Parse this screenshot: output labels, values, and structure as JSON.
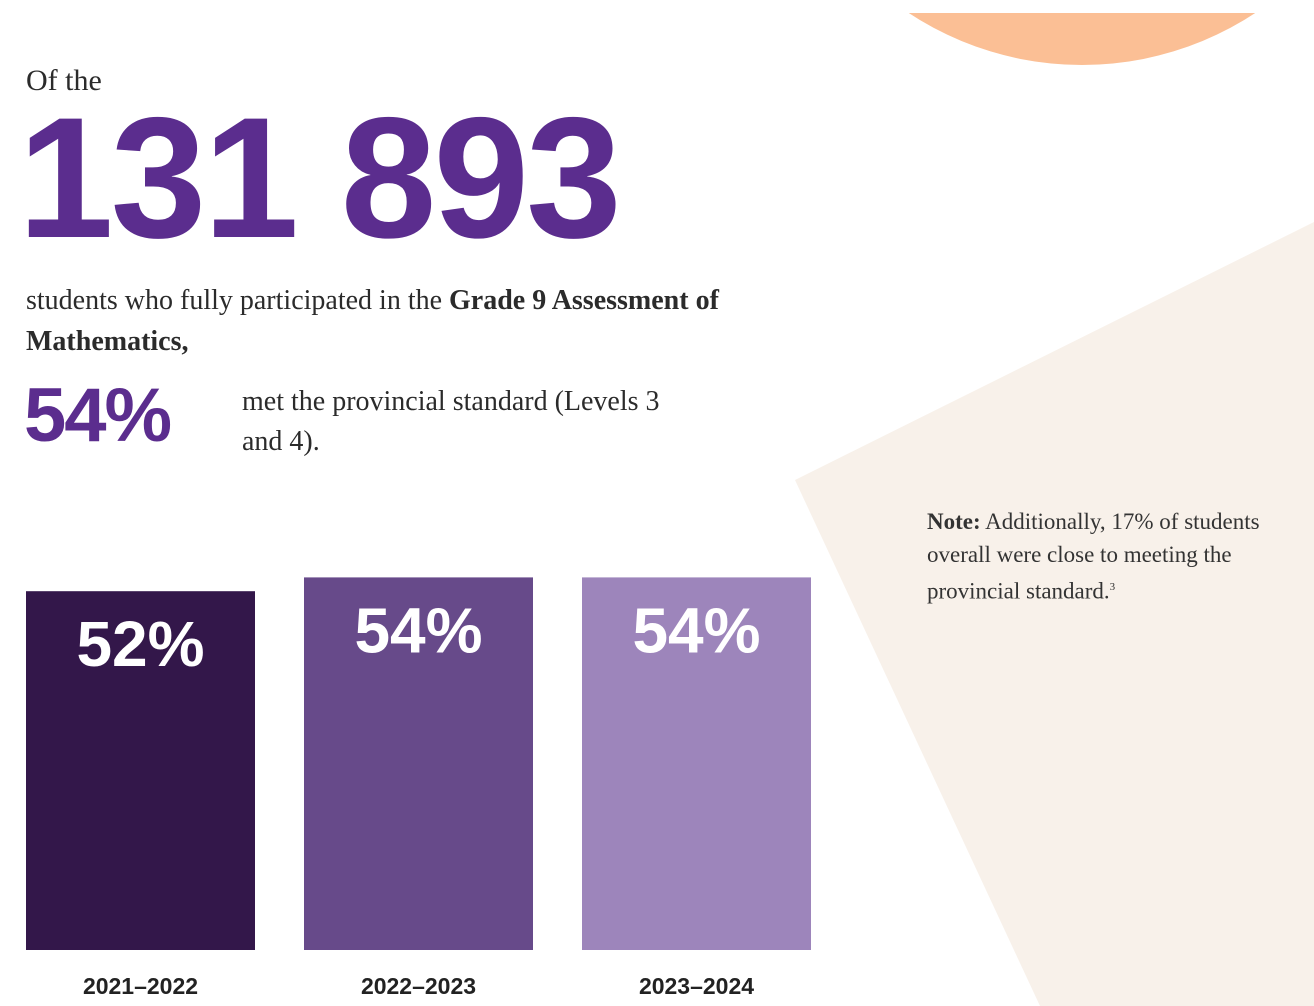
{
  "intro": {
    "lead": "Of the",
    "count": "131 893",
    "text_plain": "students who fully participated in the ",
    "text_bold": "Grade 9 Assessment of Mathematics,",
    "percent": "54%",
    "percent_text": "met the provincial standard (Levels 3 and 4)."
  },
  "note": {
    "label": "Note:",
    "text": " Additionally, 17% of students overall were close to meeting the provincial standard.",
    "footnote": "3"
  },
  "chart_data": {
    "type": "bar",
    "categories": [
      "2021–2022",
      "2022–2023",
      "2023–2024"
    ],
    "values": [
      52,
      54,
      54
    ],
    "value_labels": [
      "52%",
      "54%",
      "54%"
    ],
    "colors": [
      "#33174a",
      "#674a8a",
      "#9d85bb"
    ],
    "ylim": [
      0,
      100
    ]
  }
}
